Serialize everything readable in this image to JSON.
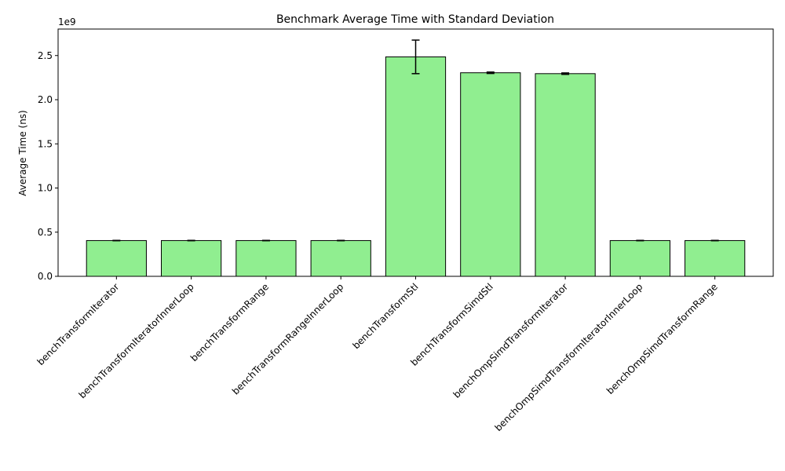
{
  "chart_data": {
    "type": "bar",
    "title": "Benchmark Average Time with Standard Deviation",
    "xlabel": "",
    "ylabel": "Average Time (ns)",
    "offset_text": "1e9",
    "ylim": [
      0,
      2800000000.0
    ],
    "yticks": [
      0,
      500000000.0,
      1000000000.0,
      1500000000.0,
      2000000000.0,
      2500000000.0
    ],
    "ytick_labels": [
      "0.0",
      "0.5",
      "1.0",
      "1.5",
      "2.0",
      "2.5"
    ],
    "categories": [
      "benchTransformIterator",
      "benchTransformIteratorInnerLoop",
      "benchTransformRange",
      "benchTransformRangeInnerLoop",
      "benchTransformStl",
      "benchTransformSimdStl",
      "benchOmpSimdTransformIterator",
      "benchOmpSimdTransformIteratorInnerLoop",
      "benchOmpSimdTransformRange"
    ],
    "values": [
      405000000,
      405000000,
      405000000,
      405000000,
      2485000000,
      2305000000,
      2295000000,
      405000000,
      405000000
    ],
    "errors": [
      2000000,
      2000000,
      2000000,
      2000000,
      190000000,
      8000000,
      8000000,
      2000000,
      2000000
    ],
    "bar_color": "#90ee90",
    "edge_color": "#000000",
    "grid": false
  }
}
